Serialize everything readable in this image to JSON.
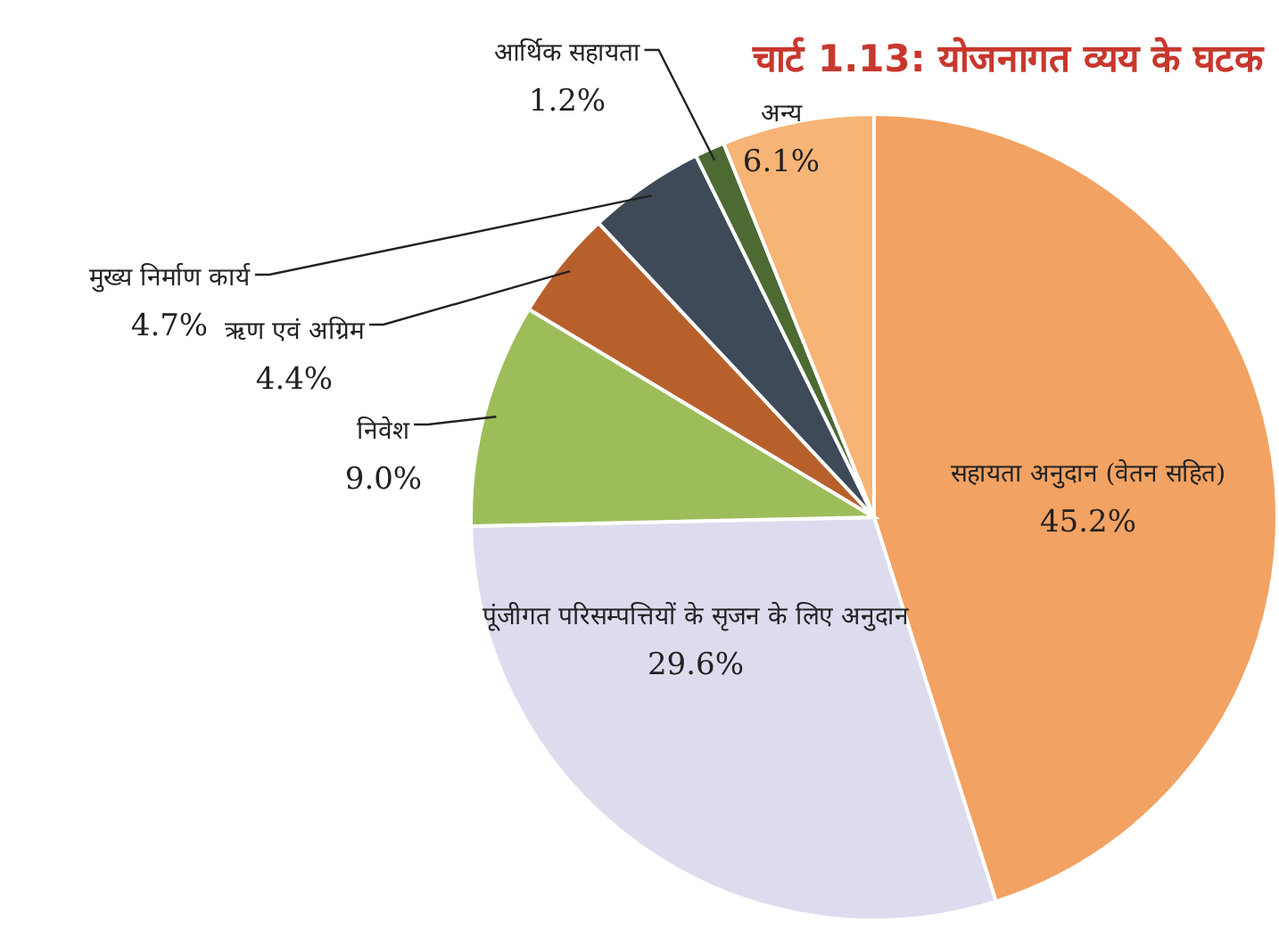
{
  "chart_data": {
    "type": "pie",
    "title": "चार्ट 1.13: योजनागत व्यय के घटक",
    "categories": [
      "सहायता अनुदान (वेतन सहित)",
      "पूंजीगत परिसम्पत्तियों के सृजन के लिए अनुदान",
      "निवेश",
      "ऋण एवं अग्रिम",
      "मुख्य निर्माण कार्य",
      "आर्थिक सहायता",
      "अन्य"
    ],
    "values": [
      45.2,
      29.6,
      9.0,
      4.4,
      4.7,
      1.2,
      6.1
    ],
    "value_labels": [
      "45.2%",
      "29.6%",
      "9.0%",
      "4.4%",
      "4.7%",
      "1.2%",
      "6.1%"
    ],
    "colors": [
      "#f2a262",
      "#dcdcee",
      "#9dbd5a",
      "#b8602c",
      "#3e4a58",
      "#4c6a32",
      "#f6b476"
    ]
  }
}
